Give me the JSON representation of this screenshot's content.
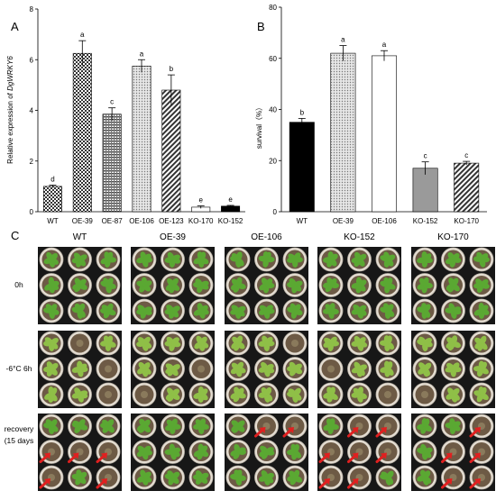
{
  "panels": {
    "a_letter": "A",
    "b_letter": "B",
    "c_letter": "C"
  },
  "chart_data": [
    {
      "type": "bar",
      "panel": "A",
      "ylabel_prefix": "Relative expression of ",
      "ylabel_gene": "DgWRKY6",
      "ylim": [
        0,
        8
      ],
      "yticks": [
        0,
        2,
        4,
        6,
        8
      ],
      "categories": [
        "WT",
        "OE-39",
        "OE-87",
        "OE-106",
        "OE-123",
        "KO-170",
        "KO-152"
      ],
      "values": [
        1.0,
        6.25,
        3.85,
        5.75,
        4.8,
        0.18,
        0.22
      ],
      "errors": [
        0.05,
        0.5,
        0.25,
        0.25,
        0.6,
        0.05,
        0.03
      ],
      "letters": [
        "d",
        "a",
        "c",
        "a",
        "b",
        "e",
        "e"
      ],
      "fills": [
        "checker",
        "checker",
        "hatch",
        "dots",
        "diag",
        "white",
        "black"
      ]
    },
    {
      "type": "bar",
      "panel": "B",
      "ylabel": "survival（%）",
      "ylim": [
        0,
        80
      ],
      "yticks": [
        0,
        20,
        40,
        60,
        80
      ],
      "categories": [
        "WT",
        "OE-39",
        "OE-106",
        "KO-152",
        "KO-170"
      ],
      "values": [
        35,
        62,
        61,
        17,
        19
      ],
      "errors": [
        1.5,
        3,
        2,
        2.5,
        0.7
      ],
      "letters": [
        "b",
        "a",
        "a",
        "c",
        "c"
      ],
      "fills": [
        "black",
        "dots",
        "white",
        "gray",
        "diag"
      ]
    }
  ],
  "photo_grid": {
    "columns": [
      "WT",
      "OE-39",
      "OE-106",
      "KO-152",
      "KO-170"
    ],
    "rows": [
      "0h",
      "-6°C 6h",
      "recovery",
      "(15 days"
    ]
  }
}
